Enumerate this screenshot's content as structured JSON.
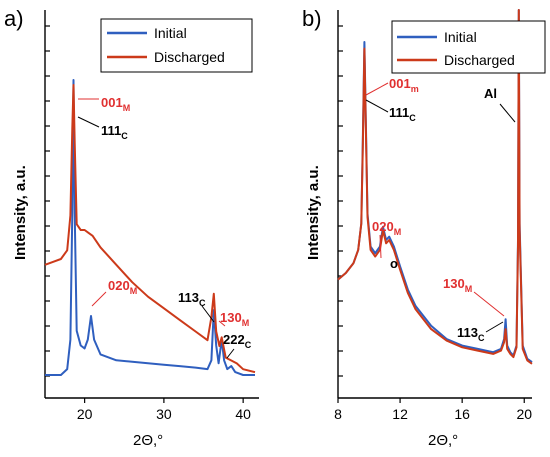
{
  "chart_data": [
    {
      "panel": "a)",
      "type": "line",
      "xlabel": "2Θ,°",
      "ylabel": "Intensity, a.u.",
      "xlim": [
        15,
        42
      ],
      "xticks": [
        "20",
        "30",
        "40"
      ],
      "legend": [
        "Initial",
        "Discharged"
      ],
      "legend_position": "top-right",
      "colors": {
        "Initial": "#2f5fbf",
        "Discharged": "#cc3a1a"
      },
      "series": [
        {
          "name": "Initial",
          "x": [
            15,
            16,
            17,
            17.8,
            18.2,
            18.45,
            18.6,
            18.75,
            19,
            19.5,
            20,
            20.4,
            20.8,
            21.2,
            22,
            24,
            26,
            28,
            30,
            32,
            34,
            35.5,
            36,
            36.3,
            36.6,
            36.9,
            37.3,
            37.6,
            38,
            38.5,
            39,
            40,
            41.5
          ],
          "y": [
            0.0,
            0.0,
            0.0,
            0.02,
            0.12,
            0.55,
            1.0,
            0.55,
            0.15,
            0.1,
            0.09,
            0.12,
            0.2,
            0.12,
            0.07,
            0.05,
            0.045,
            0.04,
            0.035,
            0.03,
            0.025,
            0.02,
            0.05,
            0.22,
            0.1,
            0.04,
            0.12,
            0.05,
            0.02,
            0.03,
            0.01,
            0.0,
            0.0
          ]
        },
        {
          "name": "Discharged",
          "x": [
            15,
            16,
            17,
            17.8,
            18.2,
            18.45,
            18.6,
            18.75,
            19,
            19.5,
            20,
            20.5,
            21,
            22,
            24,
            26,
            28,
            30,
            32,
            34,
            35.5,
            36,
            36.3,
            36.6,
            37,
            37.3,
            37.8,
            38.5,
            39.2,
            40,
            41.5
          ],
          "y": [
            0.38,
            0.39,
            0.4,
            0.43,
            0.55,
            0.85,
            1.0,
            0.8,
            0.52,
            0.5,
            0.5,
            0.49,
            0.48,
            0.44,
            0.38,
            0.32,
            0.27,
            0.23,
            0.19,
            0.15,
            0.12,
            0.2,
            0.28,
            0.15,
            0.1,
            0.13,
            0.06,
            0.05,
            0.04,
            0.02,
            0.01
          ]
        }
      ],
      "annotations": [
        {
          "label": "001",
          "sub": "M",
          "color": "#e03030"
        },
        {
          "label": "111",
          "sub": "C",
          "color": "#000000"
        },
        {
          "label": "020",
          "sub": "M",
          "color": "#e03030"
        },
        {
          "label": "113",
          "sub": "C",
          "color": "#000000"
        },
        {
          "label": "130",
          "sub": "M",
          "color": "#e03030"
        },
        {
          "label": "222",
          "sub": "C",
          "color": "#000000"
        }
      ]
    },
    {
      "panel": "b)",
      "type": "line",
      "xlabel": "2Θ,°",
      "ylabel": "Intensity, a.u.",
      "xlim": [
        8,
        20.5
      ],
      "xticks": [
        "8",
        "12",
        "16",
        "20"
      ],
      "legend": [
        "Initial",
        "Discharged"
      ],
      "legend_position": "top-right",
      "colors": {
        "Initial": "#2f5fbf",
        "Discharged": "#cc3a1a"
      },
      "series": [
        {
          "name": "Initial",
          "x": [
            8,
            8.5,
            9,
            9.3,
            9.5,
            9.6,
            9.7,
            9.8,
            9.9,
            10.1,
            10.4,
            10.7,
            10.9,
            11.1,
            11.3,
            11.6,
            12,
            12.5,
            13,
            14,
            15,
            16,
            17,
            18,
            18.5,
            18.7,
            18.8,
            18.9,
            19.1,
            19.3,
            19.5,
            19.6,
            19.65,
            19.7,
            19.9,
            20.2,
            20.5
          ],
          "y": [
            0.28,
            0.3,
            0.33,
            0.37,
            0.45,
            0.7,
            1.0,
            0.75,
            0.48,
            0.38,
            0.36,
            0.38,
            0.44,
            0.4,
            0.41,
            0.38,
            0.32,
            0.25,
            0.2,
            0.14,
            0.1,
            0.08,
            0.07,
            0.06,
            0.07,
            0.1,
            0.16,
            0.08,
            0.06,
            0.05,
            0.08,
            0.4,
            1.2,
            0.45,
            0.08,
            0.04,
            0.03
          ]
        },
        {
          "name": "Discharged",
          "x": [
            8,
            8.5,
            9,
            9.3,
            9.5,
            9.6,
            9.7,
            9.8,
            9.9,
            10.1,
            10.4,
            10.7,
            10.9,
            11.1,
            11.3,
            11.6,
            12,
            12.5,
            13,
            14,
            15,
            16,
            17,
            18,
            18.5,
            18.7,
            18.8,
            18.9,
            19.1,
            19.3,
            19.5,
            19.6,
            19.65,
            19.7,
            19.9,
            20.2,
            20.5
          ],
          "y": [
            0.28,
            0.3,
            0.33,
            0.37,
            0.45,
            0.68,
            0.98,
            0.73,
            0.47,
            0.37,
            0.35,
            0.37,
            0.43,
            0.39,
            0.4,
            0.37,
            0.31,
            0.24,
            0.19,
            0.13,
            0.095,
            0.075,
            0.065,
            0.055,
            0.065,
            0.09,
            0.13,
            0.07,
            0.055,
            0.045,
            0.075,
            0.38,
            1.2,
            0.43,
            0.07,
            0.035,
            0.025
          ]
        }
      ],
      "annotations": [
        {
          "label": "001",
          "sub": "m",
          "color": "#e03030"
        },
        {
          "label": "111",
          "sub": "C",
          "color": "#000000"
        },
        {
          "label": "020",
          "sub": "M",
          "color": "#e03030"
        },
        {
          "label": "130",
          "sub": "M",
          "color": "#e03030"
        },
        {
          "label": "113",
          "sub": "C",
          "color": "#000000"
        },
        {
          "label": "Al",
          "sub": "",
          "color": "#000000"
        },
        {
          "label": "o",
          "sub": "",
          "color": "#000000"
        }
      ]
    }
  ]
}
